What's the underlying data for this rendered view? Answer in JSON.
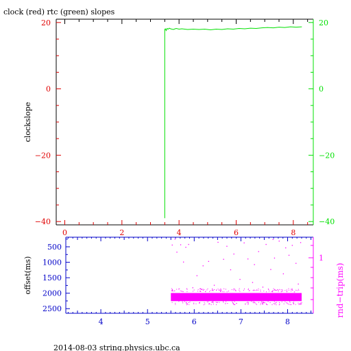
{
  "title": "clock (red) rtc (green) slopes",
  "footer": "2014-08-03 string.physics.ubc.ca",
  "colors": {
    "black": "#000000",
    "red": "#e00000",
    "green": "#00e000",
    "blue": "#0000c8",
    "magenta": "#ff00ff"
  },
  "chart_data": [
    {
      "type": "line",
      "title": "clock (red) rtc (green) slopes",
      "ylabel": "clockslope",
      "xlim": [
        -0.3,
        8.7
      ],
      "ylim": [
        -41,
        21
      ],
      "x_ticks": [
        0,
        2,
        4,
        6,
        8
      ],
      "y_ticks": [
        20,
        0,
        -20,
        -40
      ],
      "y_ticks_right": [
        20,
        0,
        -20,
        -40
      ],
      "grid": false,
      "series": [
        {
          "color": "#00e000",
          "x": [
            3.5,
            3.5,
            3.52,
            3.55,
            3.58,
            3.62,
            3.66,
            3.7,
            3.8,
            3.9,
            4.0,
            4.1,
            4.3,
            4.5,
            4.7,
            4.9,
            5.1,
            5.3,
            5.5,
            5.7,
            5.9,
            6.1,
            6.3,
            6.5,
            6.7,
            6.9,
            7.1,
            7.3,
            7.5,
            7.7,
            7.9,
            8.1,
            8.3
          ],
          "y": [
            -39,
            17.9,
            18.1,
            17.6,
            18.2,
            18.0,
            18.3,
            18.1,
            17.9,
            18.2,
            18.0,
            18.1,
            17.9,
            18.0,
            17.9,
            18.0,
            17.8,
            18.0,
            17.9,
            18.1,
            18.0,
            18.2,
            18.1,
            18.3,
            18.2,
            18.4,
            18.5,
            18.4,
            18.6,
            18.5,
            18.7,
            18.6,
            18.7
          ]
        }
      ]
    },
    {
      "type": "scatter",
      "ylabel": "offset(ms)",
      "ylabel_right": "rnd−trip(ms)",
      "xlim": [
        3.25,
        8.55
      ],
      "ylim": [
        2650,
        190
      ],
      "x_ticks": [
        4,
        5,
        6,
        7,
        8
      ],
      "y_ticks": [
        500,
        1000,
        1500,
        2000,
        2500
      ],
      "y_ticks_right": [
        1
      ],
      "grid": false,
      "series": [
        {
          "color": "#ff00ff",
          "band": {
            "x_start": 5.5,
            "x_end": 8.3,
            "y_top": 1950,
            "y_bottom": 2300
          },
          "outlier_points": [
            [
              5.52,
              430
            ],
            [
              5.62,
              660
            ],
            [
              5.7,
              420
            ],
            [
              5.76,
              980
            ],
            [
              5.81,
              500
            ],
            [
              5.87,
              410
            ],
            [
              6.05,
              1420
            ],
            [
              6.18,
              1100
            ],
            [
              6.3,
              960
            ],
            [
              6.5,
              340
            ],
            [
              6.62,
              890
            ],
            [
              6.77,
              1230
            ],
            [
              6.84,
              720
            ],
            [
              6.97,
              1540
            ],
            [
              7.06,
              360
            ],
            [
              7.14,
              880
            ],
            [
              7.28,
              1060
            ],
            [
              7.37,
              640
            ],
            [
              7.53,
              410
            ],
            [
              7.63,
              1220
            ],
            [
              7.71,
              850
            ],
            [
              7.81,
              300
            ],
            [
              7.9,
              1360
            ],
            [
              8.02,
              760
            ],
            [
              8.09,
              440
            ],
            [
              8.17,
              1020
            ],
            [
              8.27,
              350
            ],
            [
              6.42,
              1730
            ],
            [
              7.24,
              1640
            ],
            [
              5.96,
              1810
            ],
            [
              7.46,
              1790
            ],
            [
              8.22,
              1690
            ],
            [
              6.69,
              470
            ],
            [
              7.95,
              520
            ],
            [
              5.58,
              240
            ],
            [
              7.68,
              250
            ]
          ]
        }
      ]
    }
  ]
}
